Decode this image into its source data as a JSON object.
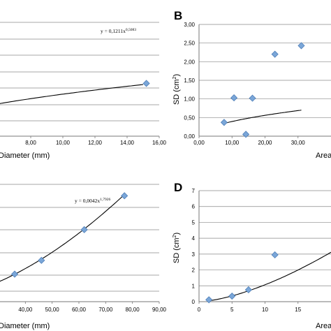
{
  "chart_data": [
    {
      "panel": "",
      "type": "scatter",
      "equation_base": "y = 0,1211x",
      "equation_exp": "0,5083",
      "x_ticks": [
        "8,00",
        "10,00",
        "12,00",
        "14,00",
        "16,00"
      ],
      "y_ticks": [],
      "xlabel": "Diameter (mm)",
      "ylabel": "",
      "trend": {
        "model": "power",
        "a": 0.1211,
        "b": 0.5083
      },
      "points": [
        {
          "x": 15.2,
          "y": 0.49
        }
      ]
    },
    {
      "panel": "B",
      "type": "scatter",
      "x_ticks": [
        "0,00",
        "10,00",
        "20,00",
        "30,00"
      ],
      "y_ticks": [
        "0,00",
        "0,50",
        "1,00",
        "1,50",
        "2,00",
        "2,50",
        "3,00"
      ],
      "xlabel": "Area",
      "ylabel_base": "SD (cm",
      "ylabel_sup": "2",
      "ylabel_end": ")",
      "ylim": [
        0,
        3
      ],
      "trend": {
        "model": "power",
        "a": 0.122,
        "b": 0.5083
      },
      "points": [
        {
          "x": 7.6,
          "y": 0.37
        },
        {
          "x": 10.6,
          "y": 1.03
        },
        {
          "x": 14.2,
          "y": 0.05
        },
        {
          "x": 16.2,
          "y": 1.02
        },
        {
          "x": 23.0,
          "y": 2.2
        },
        {
          "x": 31.0,
          "y": 2.43
        }
      ]
    },
    {
      "panel": "",
      "type": "scatter",
      "equation_base": "y = 0,0042x",
      "equation_exp": "1,7926",
      "x_ticks": [
        "40,00",
        "50,00",
        "60,00",
        "70,00",
        "80,00",
        "90,00"
      ],
      "y_ticks": [],
      "xlabel": "Diameter (mm)",
      "ylabel": "",
      "trend": {
        "model": "power",
        "a": 0.0042,
        "b": 1.7926
      },
      "points": [
        {
          "x": 36.0,
          "y": 2.6
        },
        {
          "x": 46.0,
          "y": 3.9
        },
        {
          "x": 62.0,
          "y": 6.8
        },
        {
          "x": 77.0,
          "y": 10.0
        }
      ]
    },
    {
      "panel": "D",
      "type": "scatter",
      "x_ticks": [
        "0",
        "5",
        "10",
        "15"
      ],
      "y_ticks": [
        "0",
        "1",
        "2",
        "3",
        "4",
        "5",
        "6",
        "7"
      ],
      "xlabel": "Area",
      "ylabel_base": "SD (cm",
      "ylabel_sup": "2",
      "ylabel_end": ")",
      "ylim": [
        0,
        7
      ],
      "trend": {
        "model": "power",
        "a": 0.03,
        "b": 1.55
      },
      "points": [
        {
          "x": 1.5,
          "y": 0.12
        },
        {
          "x": 5.0,
          "y": 0.35
        },
        {
          "x": 7.5,
          "y": 0.75
        },
        {
          "x": 11.5,
          "y": 2.95
        }
      ]
    }
  ]
}
